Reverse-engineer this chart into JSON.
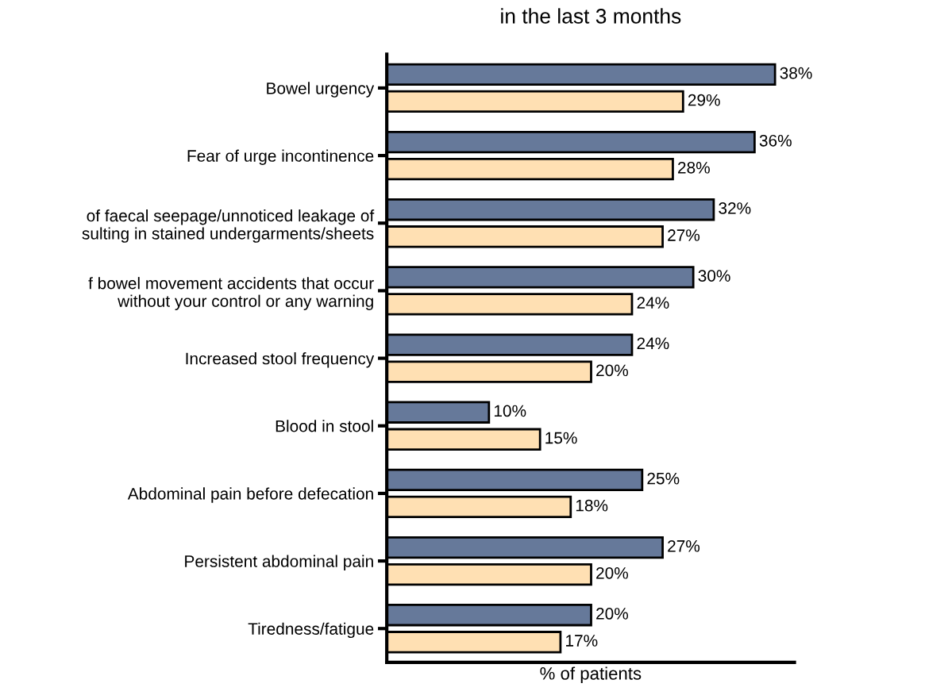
{
  "chart_data": {
    "type": "bar",
    "orientation": "horizontal",
    "title": "in the last 3 months",
    "xlabel": "% of patients",
    "categories": [
      "Bowel urgency",
      "Fear of urge incontinence",
      "of faecal seepage/unnoticed leakage of\nsulting in stained undergarments/sheets",
      "f bowel movement accidents that occur\nwithout your control or any warning",
      "Increased stool frequency",
      "Blood in stool",
      "Abdominal pain before defecation",
      "Persistent abdominal pain",
      "Tiredness/fatigue"
    ],
    "series": [
      {
        "color": "#66799a",
        "values": [
          38,
          36,
          32,
          30,
          24,
          10,
          25,
          27,
          20
        ],
        "value_labels": [
          "38%",
          "36%",
          "32%",
          "30%",
          "24%",
          "10%",
          "25%",
          "27%",
          "20%"
        ]
      },
      {
        "color": "#ffe0b3",
        "values": [
          29,
          28,
          27,
          24,
          20,
          15,
          18,
          20,
          17
        ],
        "value_labels": [
          "29%",
          "28%",
          "27%",
          "24%",
          "20%",
          "15%",
          "18%",
          "20%",
          "17%"
        ]
      }
    ],
    "tick_labels": "y"
  }
}
